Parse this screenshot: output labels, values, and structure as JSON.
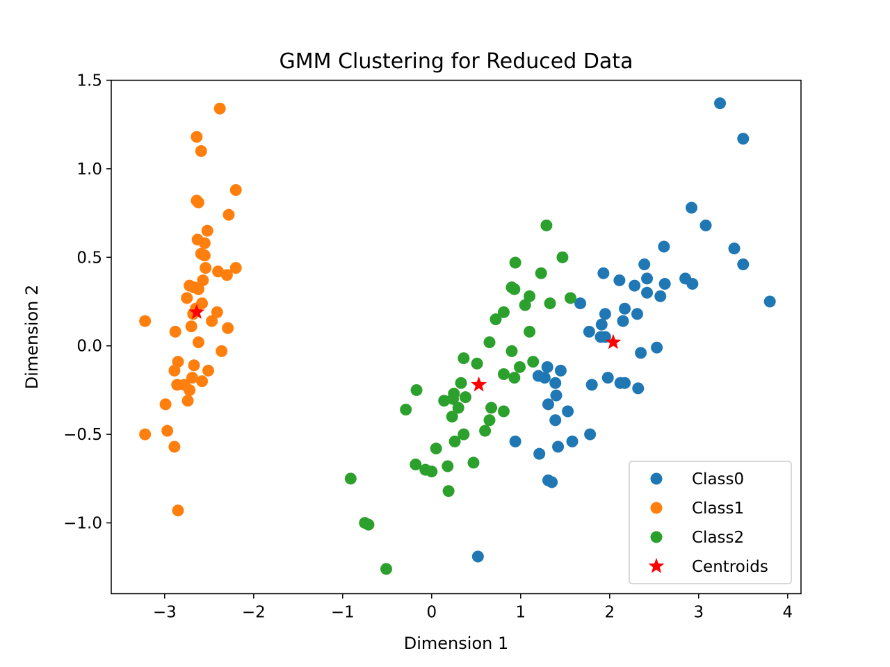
{
  "chart_data": {
    "type": "scatter",
    "title": "GMM Clustering for Reduced Data",
    "xlabel": "Dimension 1",
    "ylabel": "Dimension 2",
    "xlim": [
      -3.6,
      4.15
    ],
    "ylim": [
      -1.4,
      1.5
    ],
    "xticks": [
      -3,
      -2,
      -1,
      0,
      1,
      2,
      3,
      4
    ],
    "xtick_labels": [
      "−3",
      "−2",
      "−1",
      "0",
      "1",
      "2",
      "3",
      "4"
    ],
    "yticks": [
      -1.0,
      -0.5,
      0.0,
      0.5,
      1.0,
      1.5
    ],
    "ytick_labels": [
      "−1.0",
      "−0.5",
      "0.0",
      "0.5",
      "1.0",
      "1.5"
    ],
    "grid": false,
    "legend_position": "bottom-right",
    "series": [
      {
        "name": "Class0",
        "color": "#1f77b4",
        "marker": "circle",
        "points": [
          [
            3.24,
            1.37
          ],
          [
            3.5,
            1.17
          ],
          [
            2.92,
            0.78
          ],
          [
            3.08,
            0.68
          ],
          [
            3.4,
            0.55
          ],
          [
            3.5,
            0.46
          ],
          [
            3.8,
            0.25
          ],
          [
            2.61,
            0.56
          ],
          [
            2.39,
            0.46
          ],
          [
            2.42,
            0.38
          ],
          [
            2.28,
            0.34
          ],
          [
            2.42,
            0.3
          ],
          [
            2.62,
            0.35
          ],
          [
            2.85,
            0.38
          ],
          [
            2.93,
            0.35
          ],
          [
            2.57,
            0.28
          ],
          [
            1.93,
            0.41
          ],
          [
            2.11,
            0.37
          ],
          [
            2.17,
            0.21
          ],
          [
            2.31,
            0.18
          ],
          [
            1.95,
            0.18
          ],
          [
            1.67,
            0.24
          ],
          [
            1.91,
            0.12
          ],
          [
            1.77,
            0.08
          ],
          [
            2.15,
            0.14
          ],
          [
            1.9,
            0.05
          ],
          [
            1.95,
            0.05
          ],
          [
            2.53,
            -0.01
          ],
          [
            2.35,
            -0.04
          ],
          [
            1.98,
            -0.18
          ],
          [
            2.12,
            -0.21
          ],
          [
            2.17,
            -0.21
          ],
          [
            2.32,
            -0.24
          ],
          [
            1.8,
            -0.22
          ],
          [
            1.3,
            -0.12
          ],
          [
            1.45,
            -0.14
          ],
          [
            1.2,
            -0.17
          ],
          [
            1.27,
            -0.18
          ],
          [
            1.39,
            -0.21
          ],
          [
            1.4,
            -0.28
          ],
          [
            1.31,
            -0.33
          ],
          [
            1.53,
            -0.37
          ],
          [
            1.39,
            -0.42
          ],
          [
            1.58,
            -0.54
          ],
          [
            1.42,
            -0.57
          ],
          [
            1.78,
            -0.5
          ],
          [
            0.94,
            -0.54
          ],
          [
            1.21,
            -0.61
          ],
          [
            1.31,
            -0.76
          ],
          [
            1.35,
            -0.77
          ],
          [
            0.52,
            -1.19
          ]
        ]
      },
      {
        "name": "Class1",
        "color": "#ff7f0e",
        "marker": "circle",
        "points": [
          [
            -2.38,
            1.34
          ],
          [
            -2.64,
            1.18
          ],
          [
            -2.59,
            1.1
          ],
          [
            -2.2,
            0.88
          ],
          [
            -2.64,
            0.82
          ],
          [
            -2.62,
            0.81
          ],
          [
            -2.28,
            0.74
          ],
          [
            -2.52,
            0.65
          ],
          [
            -2.63,
            0.6
          ],
          [
            -2.55,
            0.58
          ],
          [
            -2.59,
            0.52
          ],
          [
            -2.55,
            0.51
          ],
          [
            -2.54,
            0.44
          ],
          [
            -2.2,
            0.44
          ],
          [
            -2.4,
            0.42
          ],
          [
            -2.3,
            0.4
          ],
          [
            -2.57,
            0.37
          ],
          [
            -2.72,
            0.34
          ],
          [
            -2.67,
            0.33
          ],
          [
            -2.62,
            0.32
          ],
          [
            -2.75,
            0.27
          ],
          [
            -2.58,
            0.24
          ],
          [
            -2.65,
            0.21
          ],
          [
            -2.41,
            0.19
          ],
          [
            -2.68,
            0.18
          ],
          [
            -2.47,
            0.14
          ],
          [
            -3.22,
            0.14
          ],
          [
            -2.7,
            0.11
          ],
          [
            -2.29,
            0.1
          ],
          [
            -2.88,
            0.08
          ],
          [
            -2.62,
            0.02
          ],
          [
            -2.36,
            -0.03
          ],
          [
            -2.85,
            -0.09
          ],
          [
            -2.67,
            -0.11
          ],
          [
            -2.51,
            -0.14
          ],
          [
            -2.89,
            -0.14
          ],
          [
            -2.69,
            -0.18
          ],
          [
            -2.58,
            -0.2
          ],
          [
            -2.86,
            -0.22
          ],
          [
            -2.78,
            -0.22
          ],
          [
            -2.72,
            -0.25
          ],
          [
            -2.74,
            -0.31
          ],
          [
            -2.99,
            -0.33
          ],
          [
            -2.97,
            -0.48
          ],
          [
            -3.22,
            -0.5
          ],
          [
            -2.89,
            -0.57
          ],
          [
            -2.85,
            -0.93
          ]
        ]
      },
      {
        "name": "Class2",
        "color": "#2ca02c",
        "marker": "circle",
        "points": [
          [
            1.29,
            0.68
          ],
          [
            1.47,
            0.5
          ],
          [
            0.94,
            0.47
          ],
          [
            1.23,
            0.41
          ],
          [
            0.9,
            0.33
          ],
          [
            0.93,
            0.32
          ],
          [
            1.1,
            0.28
          ],
          [
            1.56,
            0.27
          ],
          [
            1.33,
            0.24
          ],
          [
            1.05,
            0.23
          ],
          [
            0.81,
            0.19
          ],
          [
            0.72,
            0.15
          ],
          [
            1.1,
            0.08
          ],
          [
            0.65,
            0.02
          ],
          [
            0.9,
            -0.03
          ],
          [
            0.36,
            -0.07
          ],
          [
            1.14,
            -0.09
          ],
          [
            0.51,
            -0.1
          ],
          [
            0.99,
            -0.12
          ],
          [
            0.81,
            -0.16
          ],
          [
            0.93,
            -0.18
          ],
          [
            0.33,
            -0.21
          ],
          [
            0.25,
            -0.27
          ],
          [
            0.38,
            -0.29
          ],
          [
            0.24,
            -0.3
          ],
          [
            0.14,
            -0.31
          ],
          [
            0.3,
            -0.35
          ],
          [
            0.67,
            -0.35
          ],
          [
            -0.29,
            -0.36
          ],
          [
            0.81,
            -0.37
          ],
          [
            0.23,
            -0.4
          ],
          [
            0.65,
            -0.42
          ],
          [
            0.6,
            -0.48
          ],
          [
            0.36,
            -0.5
          ],
          [
            0.26,
            -0.54
          ],
          [
            -0.17,
            -0.25
          ],
          [
            0.05,
            -0.58
          ],
          [
            -0.18,
            -0.67
          ],
          [
            0.18,
            -0.68
          ],
          [
            0.47,
            -0.66
          ],
          [
            -0.07,
            -0.7
          ],
          [
            0.0,
            -0.71
          ],
          [
            -0.91,
            -0.75
          ],
          [
            0.19,
            -0.82
          ],
          [
            -0.75,
            -1.0
          ],
          [
            -0.71,
            -1.01
          ],
          [
            -0.51,
            -1.26
          ]
        ]
      },
      {
        "name": "Centroids",
        "color": "#ff0000",
        "marker": "star",
        "points": [
          [
            2.04,
            0.02
          ],
          [
            0.53,
            -0.22
          ],
          [
            -2.64,
            0.19
          ]
        ]
      }
    ]
  }
}
